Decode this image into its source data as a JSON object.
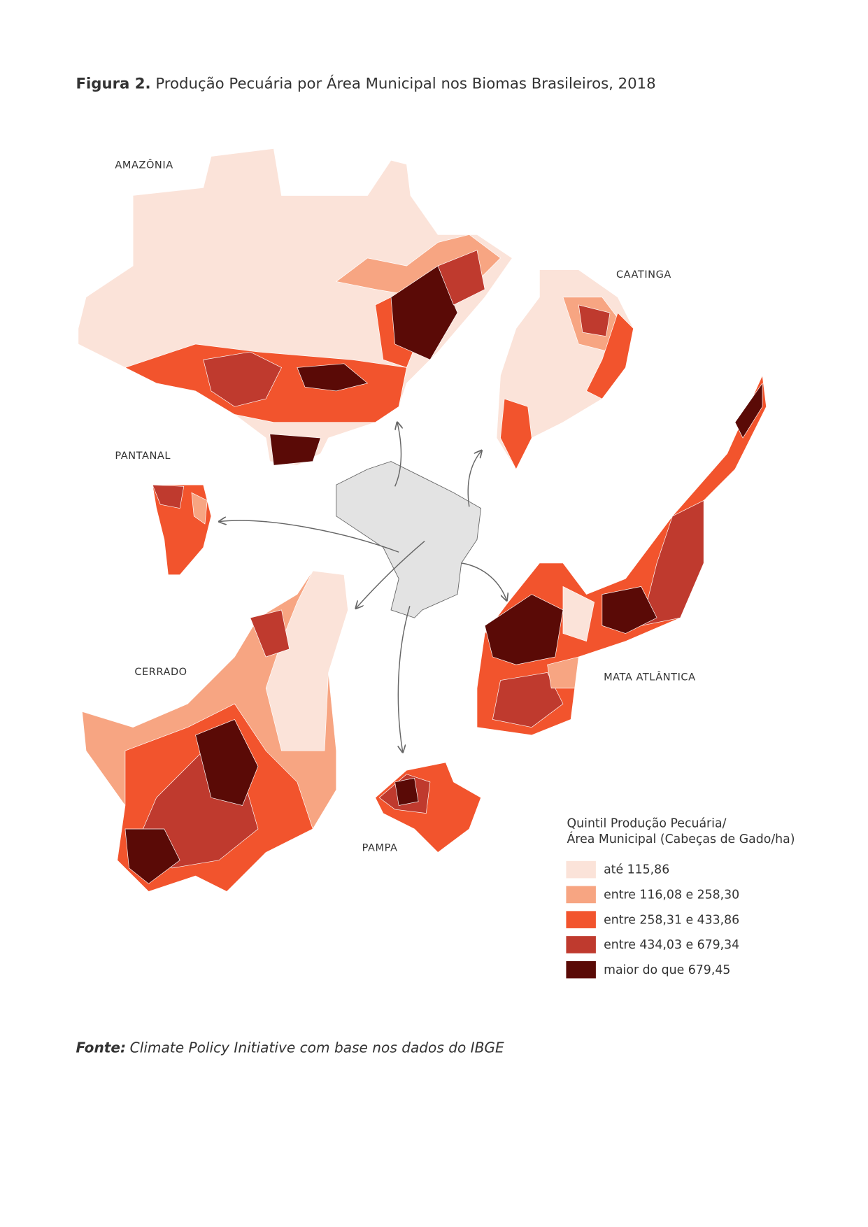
{
  "title": {
    "label": "Figura 2.",
    "text": "Produção Pecuária por Área Municipal nos Biomas Brasileiros, 2018"
  },
  "map": {
    "regions": [
      "AMAZÔNIA",
      "CAATINGA",
      "PANTANAL",
      "CERRADO",
      "MATA ATLÂNTICA",
      "PAMPA"
    ]
  },
  "legend": {
    "title": [
      "Quintil Produção Pecuária/",
      "Área Municipal (Cabeças de Gado/ha)"
    ],
    "items": [
      {
        "label": "até 115,86",
        "color": "#fbe3d9"
      },
      {
        "label": "entre 116,08 e 258,30",
        "color": "#f7a582"
      },
      {
        "label": "entre 258,31 e 433,86",
        "color": "#f2542d"
      },
      {
        "label": "entre 434,03 e 679,34",
        "color": "#bf3a2e"
      },
      {
        "label": "maior do que 679,45",
        "color": "#5a0a06"
      }
    ]
  },
  "source": {
    "label": "Fonte:",
    "text": "Climate Policy Initiative com base nos dados do IBGE"
  }
}
